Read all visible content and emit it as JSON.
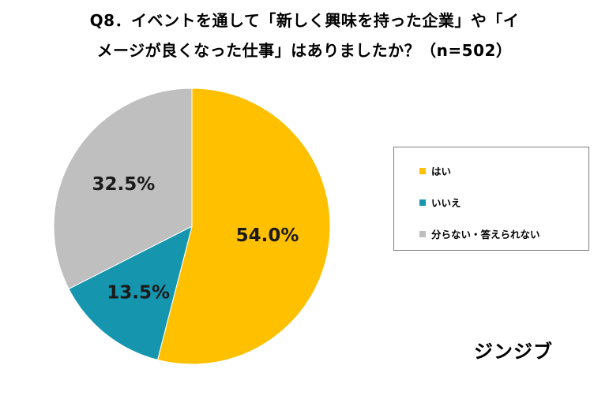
{
  "title": {
    "line1": "Q8．イベントを通して「新しく興味を持った企業」や「イ",
    "line2": "メージが良くなった仕事」はありましたか？（n=502）"
  },
  "chart_data": {
    "type": "pie",
    "title": "Q8．イベントを通して「新しく興味を持った企業」や「イメージが良くなった仕事」はありましたか？（n=502）",
    "n": 502,
    "start_angle_deg": 0,
    "direction": "clockwise",
    "slices": [
      {
        "label": "はい",
        "value": 54.0,
        "display": "54.0%",
        "color": "#FFC000"
      },
      {
        "label": "いいえ",
        "value": 13.5,
        "display": "13.5%",
        "color": "#1596AE"
      },
      {
        "label": "分らない・答えられない",
        "value": 32.5,
        "display": "32.5%",
        "color": "#BFBFBF"
      }
    ],
    "legend_position": "right"
  },
  "legend": {
    "items": [
      {
        "label": "はい",
        "color": "#FFC000"
      },
      {
        "label": "いいえ",
        "color": "#1596AE"
      },
      {
        "label": "分らない・答えられない",
        "color": "#BFBFBF"
      }
    ]
  },
  "brand": {
    "text": "ジンジブ"
  }
}
